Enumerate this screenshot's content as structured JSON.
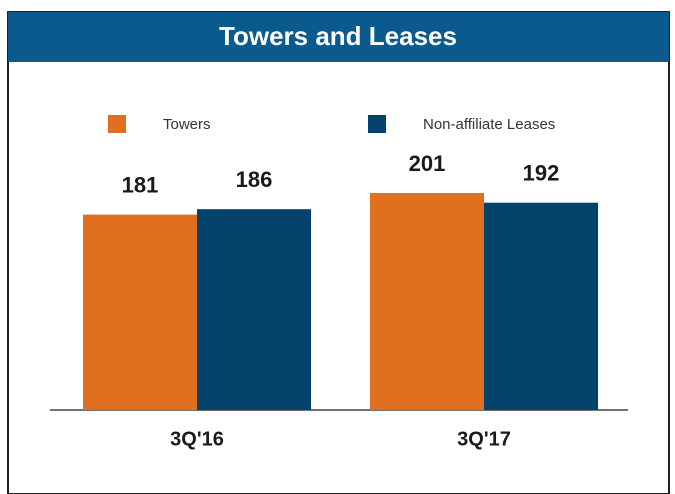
{
  "chart_data": {
    "type": "bar",
    "title": "Towers and Leases",
    "categories": [
      "3Q'16",
      "3Q'17"
    ],
    "series": [
      {
        "name": "Towers",
        "color": "#e07020",
        "values": [
          181,
          201
        ]
      },
      {
        "name": "Non-affiliate Leases",
        "color": "#02426b",
        "values": [
          186,
          192
        ]
      }
    ]
  }
}
